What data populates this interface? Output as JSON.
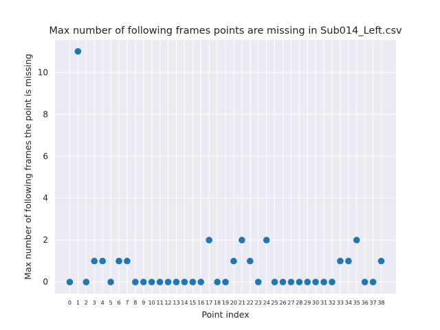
{
  "chart_data": {
    "type": "scatter",
    "title": "Max number of following frames points are missing in Sub014_Left.csv",
    "xlabel": "Point index",
    "ylabel": "Max number of following frames the point is missing",
    "x": [
      0,
      1,
      2,
      3,
      4,
      5,
      6,
      7,
      8,
      9,
      10,
      11,
      12,
      13,
      14,
      15,
      16,
      17,
      18,
      19,
      20,
      21,
      22,
      23,
      24,
      25,
      26,
      27,
      28,
      29,
      30,
      31,
      32,
      33,
      34,
      35,
      36,
      37,
      38
    ],
    "y": [
      0,
      11,
      0,
      1,
      1,
      0,
      1,
      1,
      0,
      0,
      0,
      0,
      0,
      0,
      0,
      0,
      0,
      2,
      0,
      0,
      1,
      2,
      1,
      0,
      2,
      0,
      0,
      0,
      0,
      0,
      0,
      0,
      0,
      1,
      1,
      2,
      0,
      0,
      1
    ],
    "xlim": [
      -1.8,
      39.8
    ],
    "ylim": [
      -0.55,
      11.55
    ],
    "yticks": [
      0,
      2,
      4,
      6,
      8,
      10
    ],
    "grid": true,
    "marker_color": "#1f77b4",
    "background_color": "#eaeaf2"
  }
}
